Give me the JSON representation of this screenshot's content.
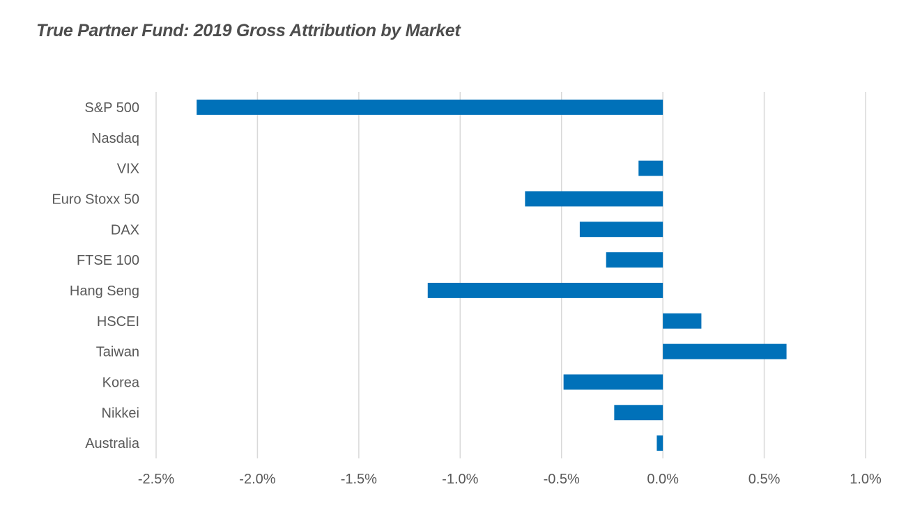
{
  "chart_data": {
    "type": "bar",
    "orientation": "horizontal",
    "title": "True Partner Fund: 2019 Gross Attribution by Market",
    "categories": [
      "S&P 500",
      "Nasdaq",
      "VIX",
      "Euro Stoxx 50",
      "DAX",
      "FTSE 100",
      "Hang Seng",
      "HSCEI",
      "Taiwan",
      "Korea",
      "Nikkei",
      "Australia"
    ],
    "values": [
      -2.3,
      0.0,
      -0.12,
      -0.68,
      -0.41,
      -0.28,
      -1.16,
      0.19,
      0.61,
      -0.49,
      -0.24,
      -0.03
    ],
    "xlim": [
      -2.5,
      1.0
    ],
    "xticks": [
      -2.5,
      -2.0,
      -1.5,
      -1.0,
      -0.5,
      0.0,
      0.5,
      1.0
    ],
    "xtick_labels": [
      "-2.5%",
      "-2.0%",
      "-1.5%",
      "-1.0%",
      "-0.5%",
      "0.0%",
      "0.5%",
      "1.0%"
    ],
    "unit": "%",
    "grid": "vertical",
    "legend": "none",
    "bar_color": "#0071b9",
    "grid_color": "#d9d9d9",
    "text_color": "#595959"
  }
}
